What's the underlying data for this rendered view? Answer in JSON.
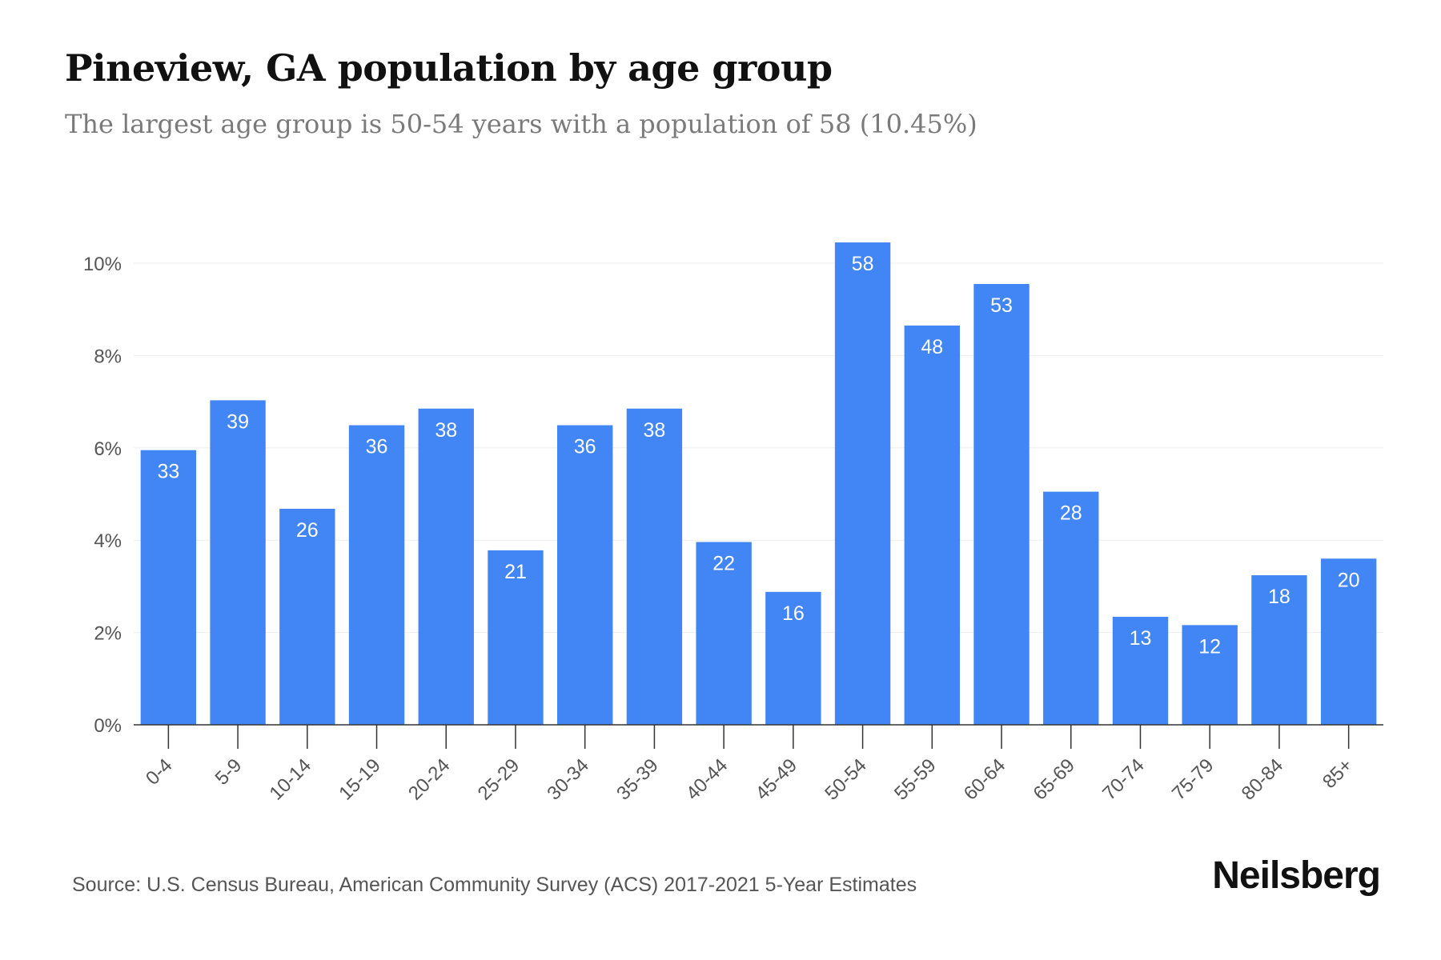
{
  "header": {
    "title": "Pineview, GA population by age group",
    "subtitle": "The largest age group is 50-54 years with a population of 58 (10.45%)"
  },
  "footer": {
    "source": "Source: U.S. Census Bureau, American Community Survey (ACS) 2017-2021 5-Year Estimates",
    "brand": "Neilsberg"
  },
  "chart_data": {
    "type": "bar",
    "title": "Pineview, GA population by age group",
    "subtitle": "The largest age group is 50-54 years with a population of 58 (10.45%)",
    "categories": [
      "0-4",
      "5-9",
      "10-14",
      "15-19",
      "20-24",
      "25-29",
      "30-34",
      "35-39",
      "40-44",
      "45-49",
      "50-54",
      "55-59",
      "60-64",
      "65-69",
      "70-74",
      "75-79",
      "80-84",
      "85+"
    ],
    "values": [
      33,
      39,
      26,
      36,
      38,
      21,
      36,
      38,
      22,
      16,
      58,
      48,
      53,
      28,
      13,
      12,
      18,
      20
    ],
    "percent_values": [
      5.95,
      7.03,
      4.68,
      6.49,
      6.85,
      3.78,
      6.49,
      6.85,
      3.96,
      2.88,
      10.45,
      8.65,
      9.55,
      5.05,
      2.34,
      2.16,
      3.24,
      3.6
    ],
    "y_ticks": [
      "0%",
      "2%",
      "4%",
      "6%",
      "8%",
      "10%"
    ],
    "y_tick_values": [
      0,
      2,
      4,
      6,
      8,
      10
    ],
    "ylim": [
      0,
      10.45
    ],
    "xlabel": "",
    "ylabel": "",
    "grid": true,
    "legend": "none",
    "bar_color": "#4285f4",
    "label_color": "#ffffff",
    "gridline_color": "#eeeeee",
    "axis_color": "#333333"
  }
}
